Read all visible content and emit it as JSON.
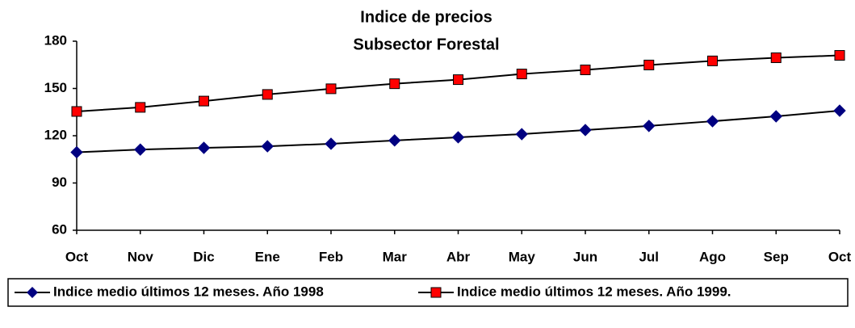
{
  "chart_data": {
    "type": "line",
    "title": [
      "Indice de precios",
      "Subsector Forestal"
    ],
    "categories": [
      "Oct",
      "Nov",
      "Dic",
      "Ene",
      "Feb",
      "Mar",
      "Abr",
      "May",
      "Jun",
      "Jul",
      "Ago",
      "Sep",
      "Oct"
    ],
    "series": [
      {
        "name": "Indice medio últimos 12 meses. Año 1998",
        "color": "#000080",
        "marker": "diamond",
        "values": [
          109.5,
          111.2,
          112.3,
          113.3,
          114.9,
          117,
          119,
          121,
          123.6,
          126.2,
          129.2,
          132.3,
          135.9
        ]
      },
      {
        "name": "Indice medio últimos 12 meses. Año 1999.",
        "color": "#ff0000",
        "marker": "square",
        "values": [
          135.4,
          138,
          142,
          146.2,
          149.8,
          153,
          155.6,
          159.2,
          161.8,
          164.9,
          167.5,
          169.5,
          171
        ]
      }
    ],
    "ylim": [
      60,
      180
    ],
    "yticks": [
      60,
      90,
      120,
      150,
      180
    ],
    "grid": false,
    "legend": "bottom"
  }
}
